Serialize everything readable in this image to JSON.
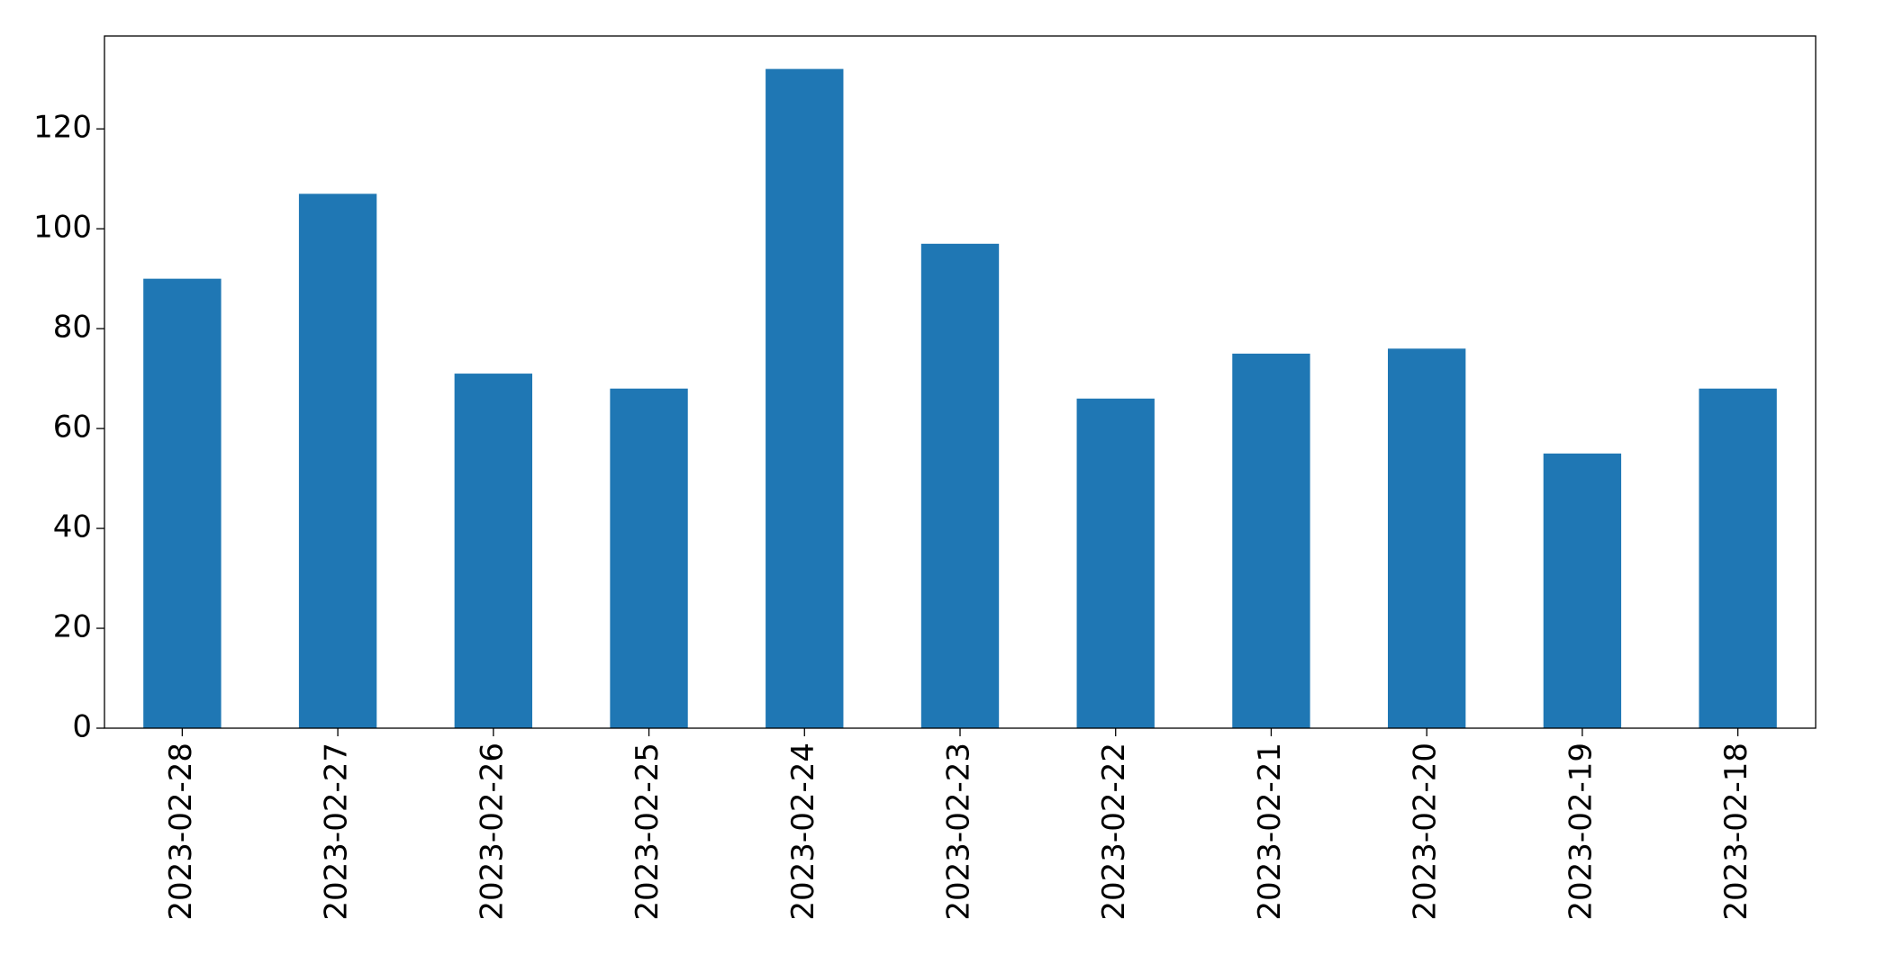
{
  "chart_data": {
    "type": "bar",
    "categories": [
      "2023-02-28",
      "2023-02-27",
      "2023-02-26",
      "2023-02-25",
      "2023-02-24",
      "2023-02-23",
      "2023-02-22",
      "2023-02-21",
      "2023-02-20",
      "2023-02-19",
      "2023-02-18"
    ],
    "values": [
      90,
      107,
      71,
      68,
      132,
      97,
      66,
      75,
      76,
      55,
      68
    ],
    "color": "#1f77b4",
    "ylim": [
      0,
      138.6
    ],
    "yticks": [
      0,
      20,
      40,
      60,
      80,
      100,
      120
    ],
    "grid": false
  }
}
